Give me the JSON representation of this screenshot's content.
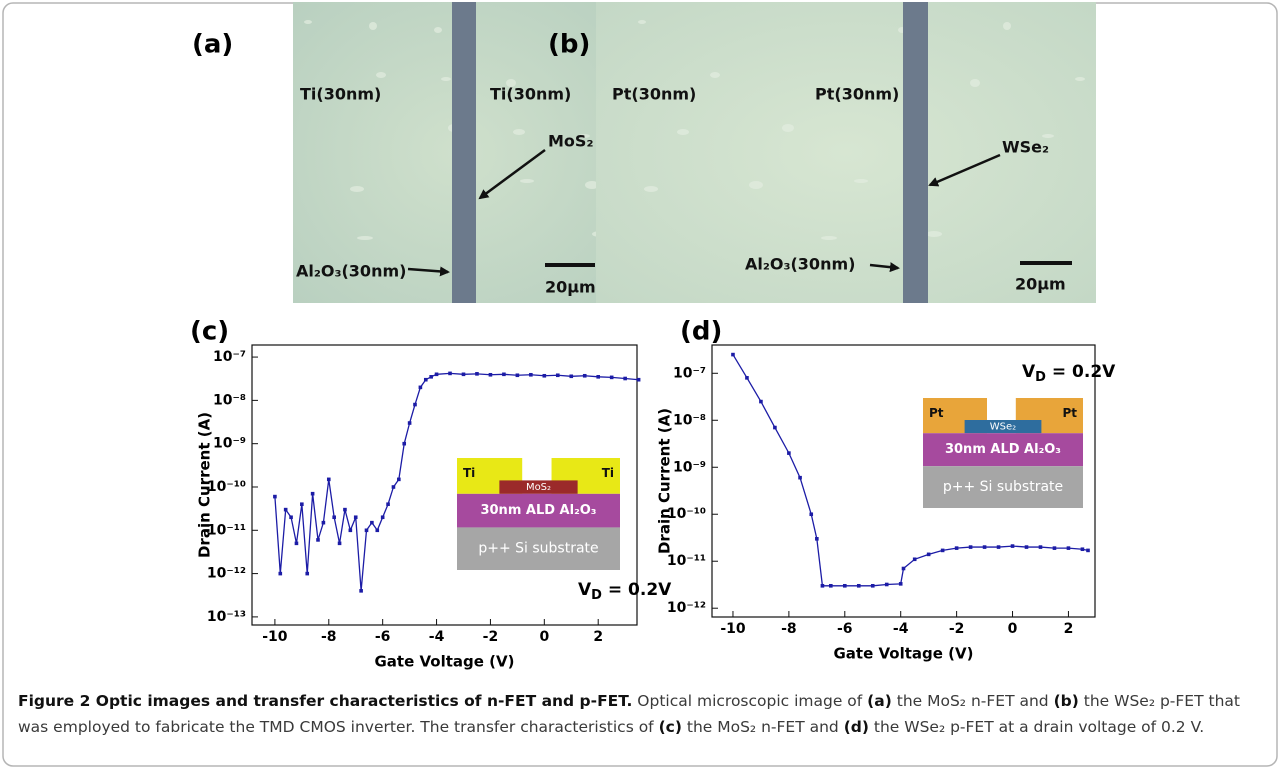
{
  "panels": [
    {
      "label": "(a)",
      "left_metal": "Ti(30nm)",
      "right_metal": "Ti(30nm)",
      "material": "MoS₂",
      "oxide": "Al₂O₃(30nm)",
      "scale_bar": "20μm"
    },
    {
      "label": "(b)",
      "left_metal": "Pt(30nm)",
      "right_metal": "Pt(30nm)",
      "material": "WSe₂",
      "oxide": "Al₂O₃(30nm)",
      "scale_bar": "20μm"
    }
  ],
  "chart_data": [
    {
      "type": "line",
      "label": "(c)",
      "x_label": "Gate Voltage (V)",
      "y_label": "Drain Current (A)",
      "log_y": true,
      "color": "#1c1ca6",
      "xlim": [
        -10.85,
        3.44
      ],
      "xticks": [
        -10,
        -8,
        -6,
        -4,
        -2,
        0,
        2
      ],
      "ylim": [
        6.5e-14,
        1.9e-07
      ],
      "yticks": [
        {
          "value": 1e-07,
          "label": "10⁻⁷"
        },
        {
          "value": 1e-08,
          "label": "10⁻⁸"
        },
        {
          "value": 1e-09,
          "label": "10⁻⁹"
        },
        {
          "value": 1e-10,
          "label": "10⁻¹⁰"
        },
        {
          "value": 1e-11,
          "label": "10⁻¹¹"
        },
        {
          "value": 1e-12,
          "label": "10⁻¹²"
        },
        {
          "value": 1e-13,
          "label": "10⁻¹³"
        }
      ],
      "x": [
        -10,
        -9.8,
        -9.6,
        -9.4,
        -9.2,
        -9,
        -8.8,
        -8.6,
        -8.4,
        -8.2,
        -8,
        -7.8,
        -7.6,
        -7.4,
        -7.2,
        -7,
        -6.8,
        -6.6,
        -6.4,
        -6.2,
        -6,
        -5.8,
        -5.6,
        -5.4,
        -5.2,
        -5,
        -4.8,
        -4.6,
        -4.4,
        -4.2,
        -4,
        -3.5,
        -3,
        -2.5,
        -2,
        -1.5,
        -1,
        -0.5,
        0,
        0.5,
        1,
        1.5,
        2,
        2.5,
        3,
        3.5
      ],
      "values": [
        6e-11,
        1e-12,
        3e-11,
        2e-11,
        5e-12,
        4e-11,
        1e-12,
        7e-11,
        6e-12,
        1.5e-11,
        1.5e-10,
        2e-11,
        5e-12,
        3e-11,
        1e-11,
        2e-11,
        4e-13,
        1e-11,
        1.5e-11,
        1e-11,
        2e-11,
        4e-11,
        1e-10,
        1.5e-10,
        1e-09,
        3e-09,
        8e-09,
        2e-08,
        3e-08,
        3.5e-08,
        4e-08,
        4.2e-08,
        4e-08,
        4.1e-08,
        3.9e-08,
        4e-08,
        3.8e-08,
        3.9e-08,
        3.7e-08,
        3.8e-08,
        3.6e-08,
        3.7e-08,
        3.5e-08,
        3.4e-08,
        3.2e-08,
        3e-08
      ],
      "annotation": {
        "symbol": "V",
        "subscript": "D",
        "text": " = 0.2V"
      },
      "inset": {
        "left_contact": "Ti",
        "right_contact": "Ti",
        "channel": "MoS₂",
        "oxide": "30nm ALD Al₂O₃",
        "substrate": "p++ Si substrate"
      }
    },
    {
      "type": "line",
      "label": "(d)",
      "x_label": "Gate Voltage (V)",
      "y_label": "Drain Current (A)",
      "log_y": true,
      "color": "#1c1ca6",
      "xlim": [
        -10.75,
        2.95
      ],
      "xticks": [
        -10,
        -8,
        -6,
        -4,
        -2,
        0,
        2
      ],
      "ylim": [
        6.5e-13,
        4e-07
      ],
      "yticks": [
        {
          "value": 1e-07,
          "label": "10⁻⁷"
        },
        {
          "value": 1e-08,
          "label": "10⁻⁸"
        },
        {
          "value": 1e-09,
          "label": "10⁻⁹"
        },
        {
          "value": 1e-10,
          "label": "10⁻¹⁰"
        },
        {
          "value": 1e-11,
          "label": "10⁻¹¹"
        },
        {
          "value": 1e-12,
          "label": "10⁻¹²"
        }
      ],
      "x": [
        -10,
        -9.5,
        -9,
        -8.5,
        -8,
        -7.6,
        -7.2,
        -7,
        -6.8,
        -6.5,
        -6,
        -5.5,
        -5,
        -4.5,
        -4,
        -3.9,
        -3.5,
        -3,
        -2.5,
        -2,
        -1.5,
        -1,
        -0.5,
        0,
        0.5,
        1,
        1.5,
        2,
        2.5,
        2.7
      ],
      "values": [
        2.5e-07,
        8e-08,
        2.5e-08,
        7e-09,
        2e-09,
        6e-10,
        1e-10,
        3e-11,
        3e-12,
        3e-12,
        3e-12,
        3e-12,
        3e-12,
        3.2e-12,
        3.3e-12,
        7e-12,
        1.1e-11,
        1.4e-11,
        1.7e-11,
        1.9e-11,
        2e-11,
        2e-11,
        2e-11,
        2.1e-11,
        2e-11,
        2e-11,
        1.9e-11,
        1.9e-11,
        1.8e-11,
        1.7e-11
      ],
      "annotation": {
        "symbol": "V",
        "subscript": "D",
        "text": " = 0.2V"
      },
      "inset": {
        "left_contact": "Pt",
        "right_contact": "Pt",
        "channel": "WSe₂",
        "oxide": "30nm ALD Al₂O₃",
        "substrate": "p++ Si substrate"
      }
    }
  ],
  "caption": [
    {
      "text": "Figure 2 Optic images and transfer characteristics of n-FET and p-FET.",
      "bold": true
    },
    {
      "text": " Optical microscopic image of ",
      "bold": false
    },
    {
      "text": "(a)",
      "bold": true
    },
    {
      "text": " the MoS₂ n-FET and ",
      "bold": false
    },
    {
      "text": "(b)",
      "bold": true
    },
    {
      "text": " the WSe₂ p-FET that was employed to fabricate the TMD CMOS inverter. The transfer characteristics of ",
      "bold": false
    },
    {
      "text": "(c)",
      "bold": true
    },
    {
      "text": " the MoS₂ n-FET and ",
      "bold": false
    },
    {
      "text": "(d)",
      "bold": true
    },
    {
      "text": " the WSe₂ p-FET at a drain voltage of 0.2 V.",
      "bold": false
    }
  ]
}
